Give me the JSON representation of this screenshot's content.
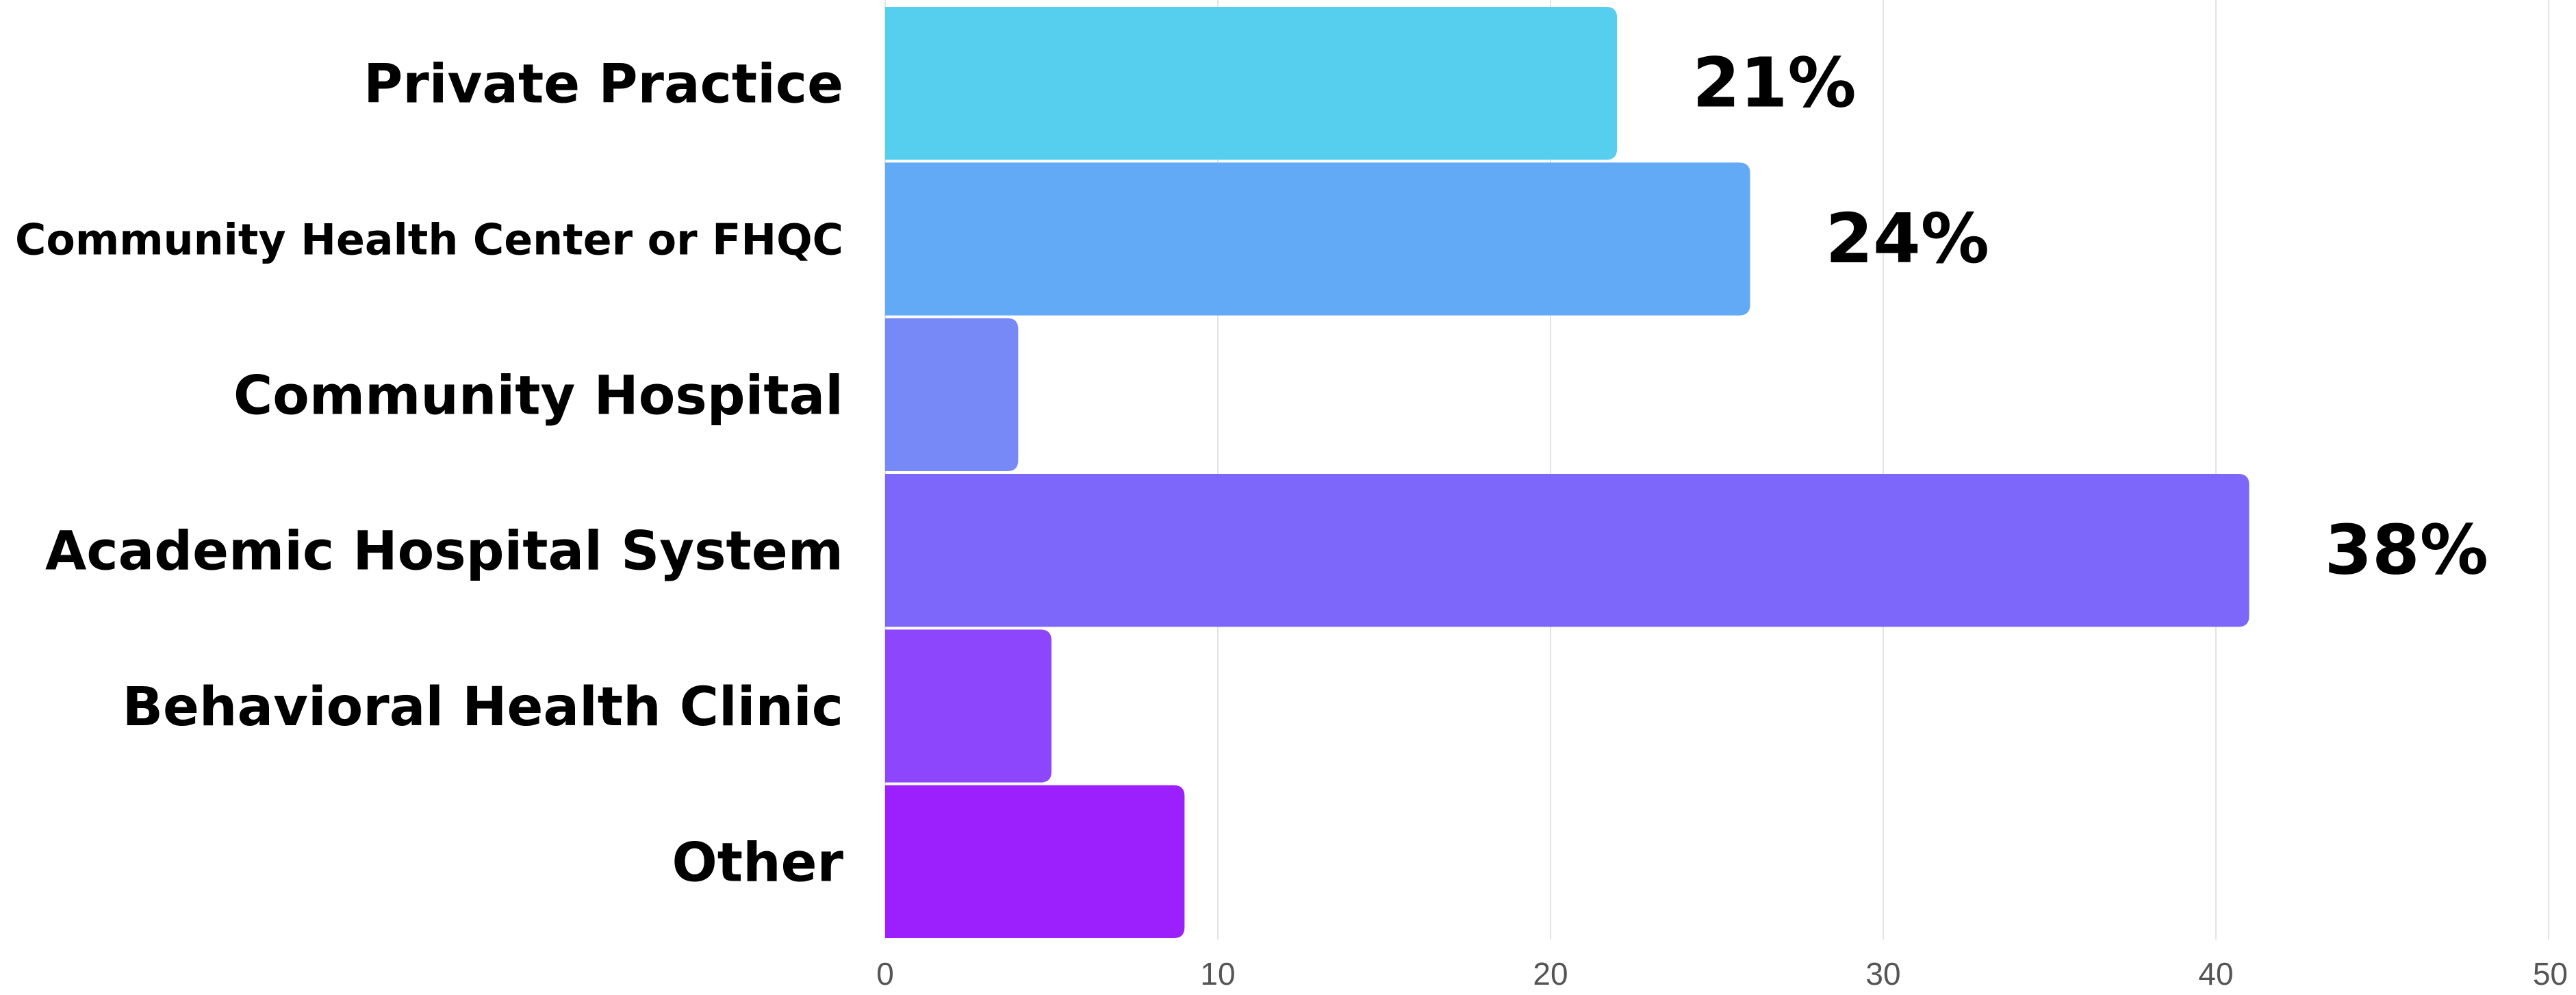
{
  "chart_data": {
    "type": "bar",
    "orientation": "horizontal",
    "categories": [
      "Private Practice",
      "Community Health Center or FHQC",
      "Community Hospital",
      "Academic Hospital System",
      "Behavioral Health Clinic",
      "Other"
    ],
    "values": [
      22,
      26,
      4,
      41,
      5,
      9
    ],
    "data_labels": [
      "21%",
      "24%",
      "",
      "38%",
      "",
      ""
    ],
    "colors": [
      "#56cfef",
      "#62aaf6",
      "#7689f6",
      "#7d67fb",
      "#8d46fb",
      "#9b20fd"
    ],
    "x_ticks": [
      "0",
      "10",
      "20",
      "30",
      "40",
      "50"
    ],
    "xlim": [
      0,
      50
    ],
    "grid": true,
    "title": "",
    "xlabel": "",
    "ylabel": ""
  }
}
